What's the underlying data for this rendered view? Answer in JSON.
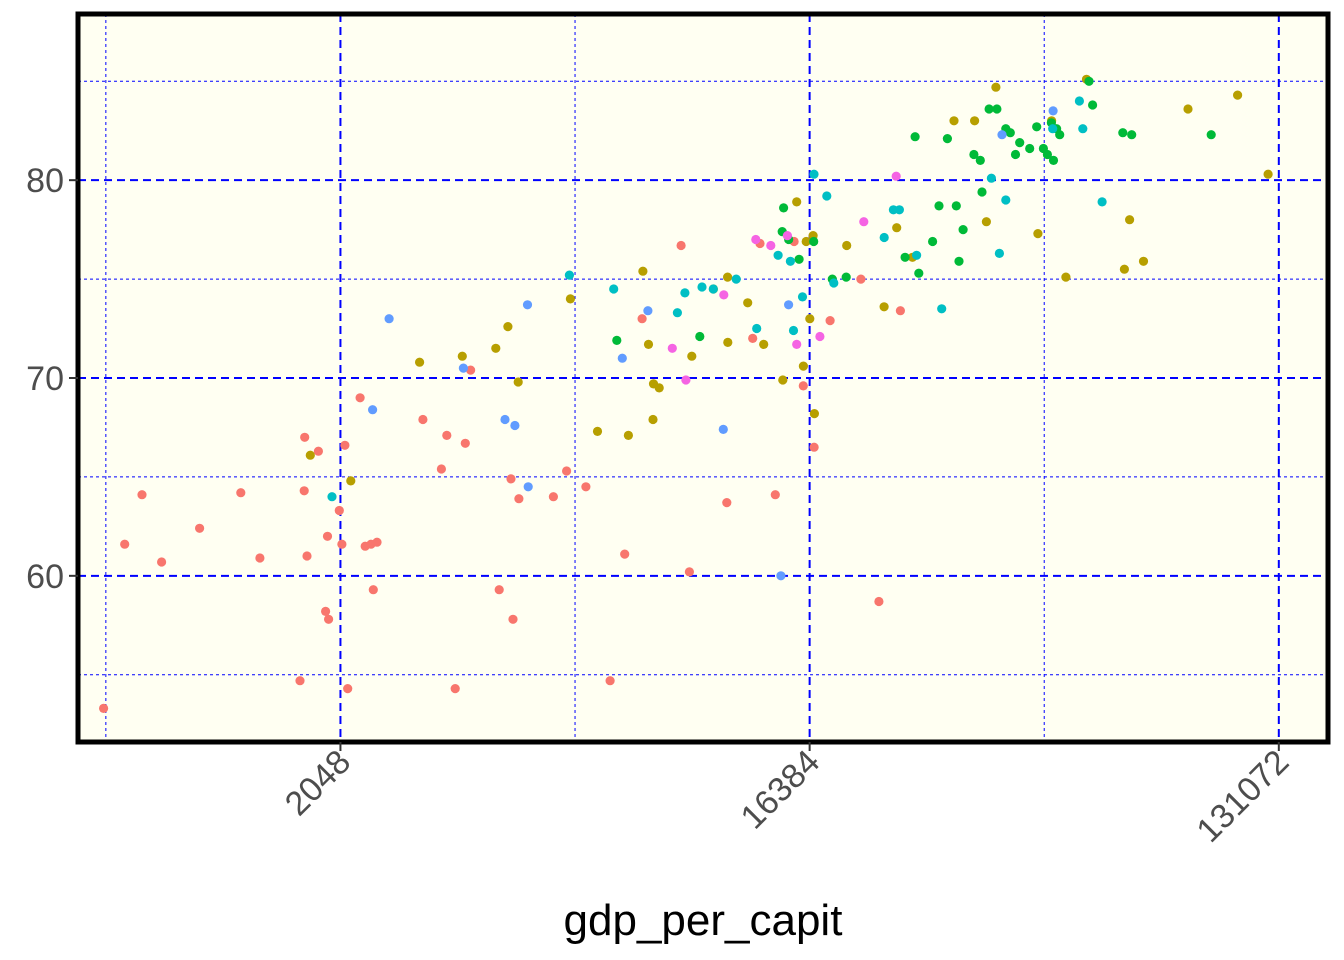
{
  "chart_data": {
    "type": "scatter",
    "title": "",
    "xlabel": "gdp_per_capit",
    "ylabel": "",
    "x_scale": "log2",
    "xlim": [
      640,
      163000
    ],
    "ylim": [
      51.6,
      88.4
    ],
    "x_ticks": [
      2048,
      16384,
      131072
    ],
    "x_tick_labels": [
      "2048",
      "16384",
      "131072"
    ],
    "y_ticks": [
      60,
      70,
      80
    ],
    "y_tick_labels": [
      "60",
      "70",
      "80"
    ],
    "grid": true,
    "legend": "none",
    "colors": {
      "panel_background": "#fffff2",
      "panel_border": "#000000",
      "grid": "#0000ff"
    },
    "series": [
      {
        "color": "#f8766d",
        "points": [
          [
            717,
            53.3
          ],
          [
            787,
            61.6
          ],
          [
            850,
            64.1
          ],
          [
            927,
            60.7
          ],
          [
            1097,
            62.4
          ],
          [
            1317,
            64.2
          ],
          [
            1433,
            60.9
          ],
          [
            1712,
            54.7
          ],
          [
            1748,
            67.0
          ],
          [
            1744,
            64.3
          ],
          [
            1766,
            61.0
          ],
          [
            1857,
            66.3
          ],
          [
            1918,
            58.2
          ],
          [
            1943,
            57.8
          ],
          [
            1934,
            62.0
          ],
          [
            2038,
            63.3
          ],
          [
            2061,
            61.6
          ],
          [
            2089,
            66.6
          ],
          [
            2115,
            54.3
          ],
          [
            2234,
            69.0
          ],
          [
            2286,
            61.5
          ],
          [
            2345,
            61.6
          ],
          [
            2369,
            59.3
          ],
          [
            2408,
            61.7
          ],
          [
            2951,
            67.9
          ],
          [
            3204,
            65.4
          ],
          [
            3282,
            67.1
          ],
          [
            3406,
            54.3
          ],
          [
            3561,
            66.7
          ],
          [
            3647,
            70.4
          ],
          [
            4140,
            59.3
          ],
          [
            4362,
            64.9
          ],
          [
            4401,
            57.8
          ],
          [
            4516,
            63.9
          ],
          [
            5262,
            64.0
          ],
          [
            5581,
            65.3
          ],
          [
            6078,
            64.5
          ],
          [
            6767,
            54.7
          ],
          [
            7219,
            61.1
          ],
          [
            7798,
            73.0
          ],
          [
            9271,
            76.7
          ],
          [
            9617,
            60.2
          ],
          [
            11350,
            63.7
          ],
          [
            12731,
            72.0
          ],
          [
            13152,
            76.8
          ],
          [
            14069,
            64.1
          ],
          [
            15294,
            76.9
          ],
          [
            15931,
            69.6
          ],
          [
            16714,
            66.5
          ],
          [
            17942,
            72.9
          ],
          [
            20566,
            75.0
          ],
          [
            22270,
            58.7
          ],
          [
            24500,
            73.4
          ]
        ]
      },
      {
        "color": "#b79f00",
        "points": [
          [
            1792,
            66.1
          ],
          [
            2144,
            64.8
          ],
          [
            2909,
            70.8
          ],
          [
            3515,
            71.1
          ],
          [
            4078,
            71.5
          ],
          [
            4302,
            72.6
          ],
          [
            4502,
            69.8
          ],
          [
            5675,
            74.0
          ],
          [
            6399,
            67.3
          ],
          [
            7337,
            67.1
          ],
          [
            7826,
            75.4
          ],
          [
            8021,
            71.7
          ],
          [
            8185,
            67.9
          ],
          [
            8203,
            69.7
          ],
          [
            8410,
            69.5
          ],
          [
            9718,
            71.1
          ],
          [
            10697,
            74.5
          ],
          [
            11391,
            75.1
          ],
          [
            11402,
            71.8
          ],
          [
            12452,
            73.8
          ],
          [
            13366,
            71.7
          ],
          [
            14547,
            69.9
          ],
          [
            15474,
            78.9
          ],
          [
            16138,
            76.9
          ],
          [
            15936,
            70.6
          ],
          [
            16397,
            73.0
          ],
          [
            16640,
            77.2
          ],
          [
            16736,
            68.2
          ],
          [
            19313,
            76.7
          ],
          [
            24095,
            77.6
          ],
          [
            22795,
            73.6
          ],
          [
            25850,
            76.1
          ],
          [
            31066,
            83.0
          ],
          [
            34036,
            83.0
          ],
          [
            35864,
            77.9
          ],
          [
            37414,
            84.7
          ],
          [
            45070,
            77.3
          ],
          [
            47888,
            83.0
          ],
          [
            51026,
            75.1
          ],
          [
            55883,
            85.1
          ],
          [
            66123,
            75.5
          ],
          [
            67660,
            78.0
          ],
          [
            71958,
            75.9
          ],
          [
            87624,
            83.6
          ],
          [
            109208,
            84.3
          ],
          [
            125019,
            80.3
          ]
        ]
      },
      {
        "color": "#00ba38",
        "points": [
          [
            6969,
            71.9
          ],
          [
            10069,
            72.1
          ],
          [
            14508,
            77.4
          ],
          [
            14597,
            78.6
          ],
          [
            14932,
            77.0
          ],
          [
            15637,
            76.0
          ],
          [
            16681,
            76.9
          ],
          [
            18117,
            75.0
          ],
          [
            19263,
            75.1
          ],
          [
            25018,
            76.1
          ],
          [
            26144,
            82.2
          ],
          [
            26580,
            75.3
          ],
          [
            28262,
            76.9
          ],
          [
            29071,
            78.7
          ],
          [
            30177,
            82.1
          ],
          [
            31383,
            78.7
          ],
          [
            31764,
            75.9
          ],
          [
            32346,
            77.5
          ],
          [
            33928,
            81.3
          ],
          [
            34916,
            81.0
          ],
          [
            35177,
            79.4
          ],
          [
            36300,
            83.6
          ],
          [
            37569,
            83.6
          ],
          [
            39091,
            82.6
          ],
          [
            39880,
            82.4
          ],
          [
            40806,
            81.3
          ],
          [
            41561,
            81.9
          ],
          [
            43451,
            81.6
          ],
          [
            44829,
            82.7
          ],
          [
            46181,
            81.6
          ],
          [
            46993,
            81.3
          ],
          [
            47829,
            82.9
          ],
          [
            48281,
            81.0
          ],
          [
            48946,
            82.6
          ],
          [
            49625,
            82.3
          ],
          [
            56520,
            85.0
          ],
          [
            57436,
            83.8
          ],
          [
            65634,
            82.4
          ],
          [
            68298,
            82.3
          ],
          [
            97143,
            82.3
          ]
        ]
      },
      {
        "color": "#00bfc4",
        "points": [
          [
            1973,
            64.0
          ],
          [
            5649,
            75.2
          ],
          [
            6874,
            74.5
          ],
          [
            9118,
            73.3
          ],
          [
            9426,
            74.3
          ],
          [
            10170,
            74.6
          ],
          [
            10689,
            74.5
          ],
          [
            11831,
            75.0
          ],
          [
            12956,
            72.5
          ],
          [
            14248,
            76.2
          ],
          [
            15047,
            75.9
          ],
          [
            15251,
            72.4
          ],
          [
            15877,
            74.1
          ],
          [
            16708,
            80.3
          ],
          [
            17680,
            79.2
          ],
          [
            18235,
            74.8
          ],
          [
            22802,
            77.1
          ],
          [
            23751,
            78.5
          ],
          [
            24391,
            78.5
          ],
          [
            26320,
            76.2
          ],
          [
            29416,
            73.5
          ],
          [
            36669,
            80.1
          ],
          [
            37996,
            76.3
          ],
          [
            39094,
            79.0
          ],
          [
            48109,
            82.6
          ],
          [
            54164,
            84.0
          ],
          [
            54983,
            82.6
          ],
          [
            59897,
            78.9
          ]
        ]
      },
      {
        "color": "#619cff",
        "points": [
          [
            2362,
            68.4
          ],
          [
            2541,
            73.0
          ],
          [
            3532,
            70.5
          ],
          [
            4247,
            67.9
          ],
          [
            4437,
            67.6
          ],
          [
            4692,
            73.7
          ],
          [
            4706,
            64.5
          ],
          [
            7142,
            71.0
          ],
          [
            8002,
            73.4
          ],
          [
            11173,
            67.4
          ],
          [
            14426,
            60.0
          ],
          [
            14924,
            73.7
          ],
          [
            38441,
            82.3
          ],
          [
            48195,
            83.5
          ]
        ]
      },
      {
        "color": "#f564e3",
        "points": [
          [
            8916,
            71.5
          ],
          [
            9467,
            69.9
          ],
          [
            11200,
            74.2
          ],
          [
            12905,
            77.0
          ],
          [
            13795,
            76.7
          ],
          [
            14849,
            77.2
          ],
          [
            15475,
            71.7
          ],
          [
            17149,
            72.1
          ],
          [
            20829,
            77.9
          ],
          [
            24048,
            80.2
          ]
        ]
      }
    ]
  }
}
